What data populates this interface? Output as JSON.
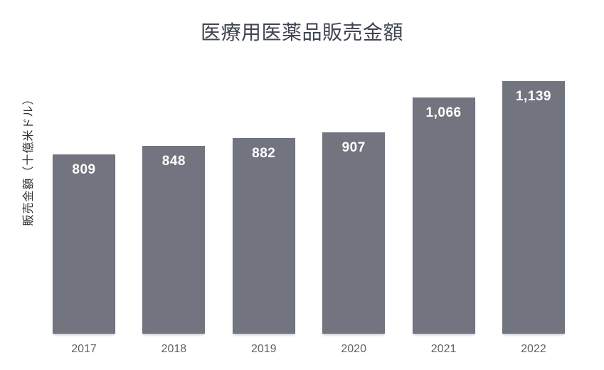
{
  "chart_data": {
    "type": "bar",
    "title": "医療用医薬品販売金額",
    "xlabel": "",
    "ylabel": "販売金額（十億米ドル）",
    "categories": [
      "2017",
      "2018",
      "2019",
      "2020",
      "2021",
      "2022"
    ],
    "values": [
      809,
      848,
      882,
      907,
      1066,
      1139
    ],
    "value_labels": [
      "809",
      "848",
      "882",
      "907",
      "1,066",
      "1,139"
    ],
    "ylim": [
      0,
      1139
    ],
    "grid": false,
    "legend": "none",
    "value_label_position": "inside-top",
    "colors": {
      "bar": "#72747F",
      "value_label": "#FFFFFF",
      "title": "#404552",
      "axis_label": "#333333",
      "tick_label": "#616161",
      "background": "#FFFFFF"
    }
  }
}
